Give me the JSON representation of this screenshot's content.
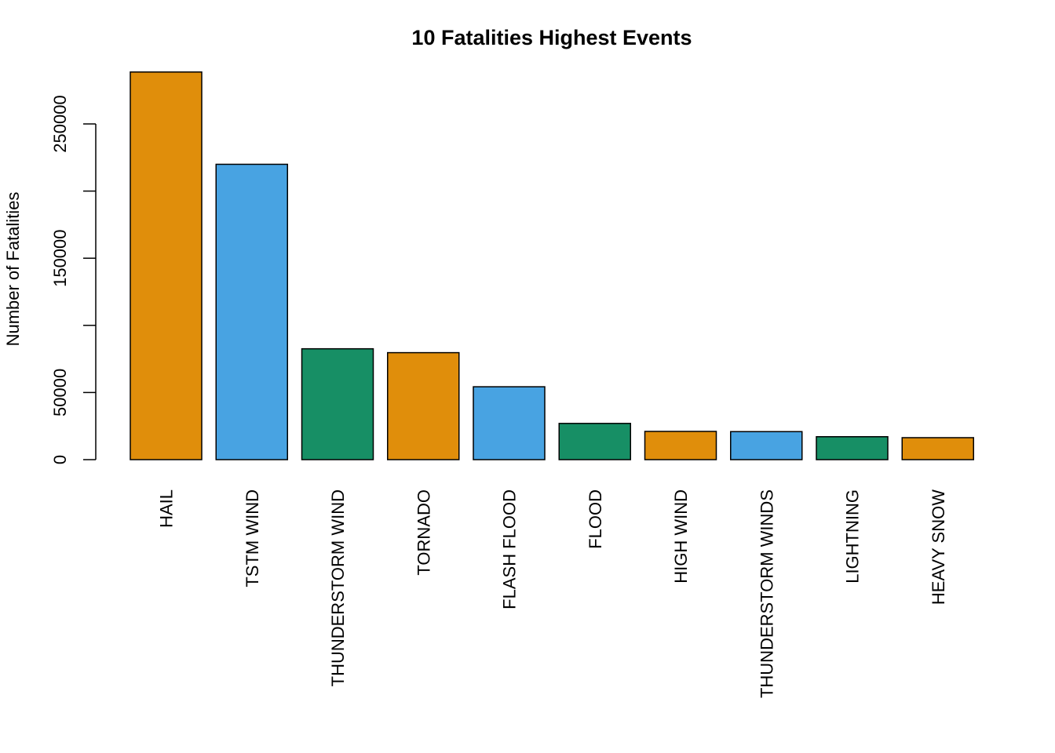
{
  "chart_data": {
    "type": "bar",
    "title": "10 Fatalities Highest Events",
    "xlabel": "",
    "ylabel": "Number of Fatalities",
    "categories": [
      "HAIL",
      "TSTM WIND",
      "THUNDERSTORM WIND",
      "TORNADO",
      "FLASH FLOOD",
      "FLOOD",
      "HIGH WIND",
      "THUNDERSTORM WINDS",
      "LIGHTNING",
      "HEAVY SNOW"
    ],
    "values": [
      288661,
      219940,
      82563,
      79676,
      54277,
      26981,
      21032,
      20864,
      17082,
      16369
    ],
    "colors": [
      "#E08E0B",
      "#48A3E2",
      "#178F65",
      "#E08E0B",
      "#48A3E2",
      "#178F65",
      "#E08E0B",
      "#48A3E2",
      "#178F65",
      "#E08E0B"
    ],
    "ylim": [
      0,
      290000
    ],
    "yticks": [
      0,
      50000,
      100000,
      150000,
      200000,
      250000
    ],
    "ytick_labels": [
      "0",
      "50000",
      "",
      "150000",
      "",
      "250000"
    ],
    "grid": false,
    "legend": "none"
  }
}
